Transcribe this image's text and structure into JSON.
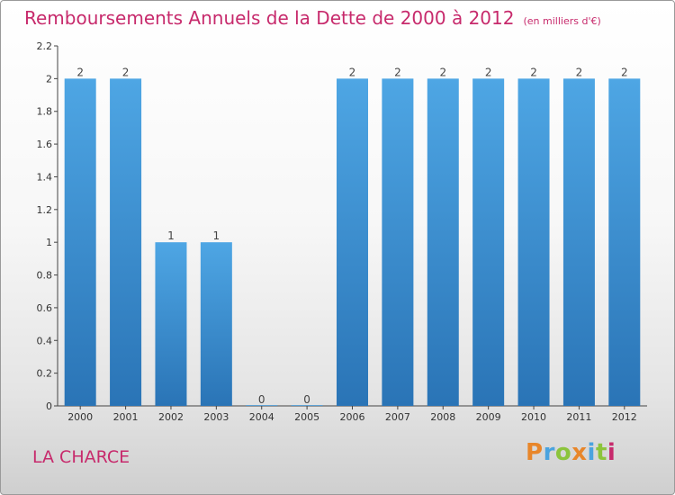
{
  "title": "Remboursements Annuels de la Dette de 2000 à 2012",
  "subtitle": "(en milliers d'€)",
  "location": "LA CHARCE",
  "brand": {
    "letters": [
      "P",
      "r",
      "o",
      "x",
      "i",
      "t",
      "i"
    ],
    "colors": [
      "#e8862a",
      "#4aa3df",
      "#8cc43c",
      "#e8862a",
      "#4aa3df",
      "#8cc43c",
      "#c72a6c"
    ]
  },
  "chart_data": {
    "type": "bar",
    "categories": [
      "2000",
      "2001",
      "2002",
      "2003",
      "2004",
      "2005",
      "2006",
      "2007",
      "2008",
      "2009",
      "2010",
      "2011",
      "2012"
    ],
    "values": [
      2,
      2,
      1,
      1,
      0,
      0,
      2,
      2,
      2,
      2,
      2,
      2,
      2
    ],
    "data_labels": [
      "2",
      "2",
      "1",
      "1",
      "0",
      "0",
      "2",
      "2",
      "2",
      "2",
      "2",
      "2",
      "2"
    ],
    "yticks": [
      "0",
      "0.2",
      "0.4",
      "0.6",
      "0.8",
      "1",
      "1.2",
      "1.4",
      "1.6",
      "1.8",
      "2",
      "2.2"
    ],
    "ylim": [
      0,
      2.2
    ],
    "bar_color": "#4ea6e4",
    "bar_color_dark": "#2a74b6",
    "grid": false
  }
}
